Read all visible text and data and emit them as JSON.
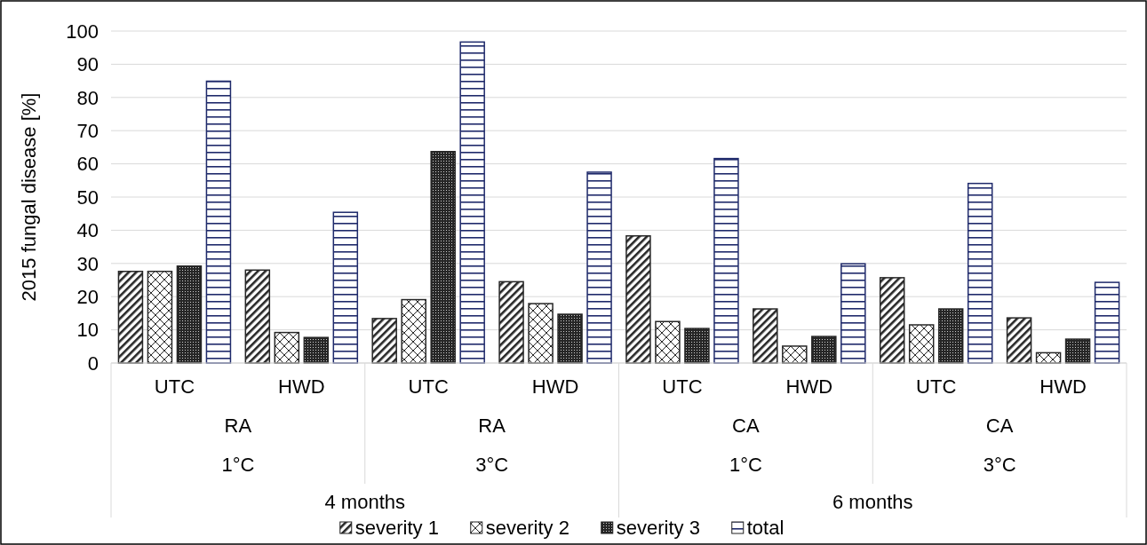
{
  "chart_data": {
    "type": "bar",
    "ylabel": "2015 fungal disease [%]",
    "categories": [
      "UTC",
      "HWD",
      "UTC",
      "HWD",
      "UTC",
      "HWD",
      "UTC",
      "HWD"
    ],
    "series": [
      {
        "name": "severity 1",
        "color": "#262626",
        "values": [
          27.6,
          28.0,
          13.4,
          24.5,
          38.3,
          16.3,
          25.7,
          13.6
        ]
      },
      {
        "name": "severity 2",
        "color": "#262626",
        "values": [
          27.6,
          9.2,
          19.1,
          17.9,
          12.5,
          5.1,
          11.5,
          3.1
        ]
      },
      {
        "name": "severity 3",
        "color": "#262626",
        "values": [
          29.2,
          7.7,
          63.7,
          14.7,
          10.4,
          8.0,
          16.3,
          7.2
        ]
      },
      {
        "name": "total",
        "color": "#1f2a6b",
        "values": [
          84.9,
          45.4,
          96.7,
          57.5,
          61.6,
          29.9,
          54.1,
          24.3
        ]
      }
    ],
    "annotations": [
      "RA",
      "RA",
      "CA",
      "CA",
      "1°C",
      "3°C",
      "1°C",
      "3°C",
      "4 months",
      "6 months"
    ],
    "ylim": [
      0,
      100
    ],
    "yticks": [
      0,
      10,
      20,
      30,
      40,
      50,
      60,
      70,
      80,
      90,
      100
    ],
    "grid": "y",
    "legend": "bottom"
  }
}
